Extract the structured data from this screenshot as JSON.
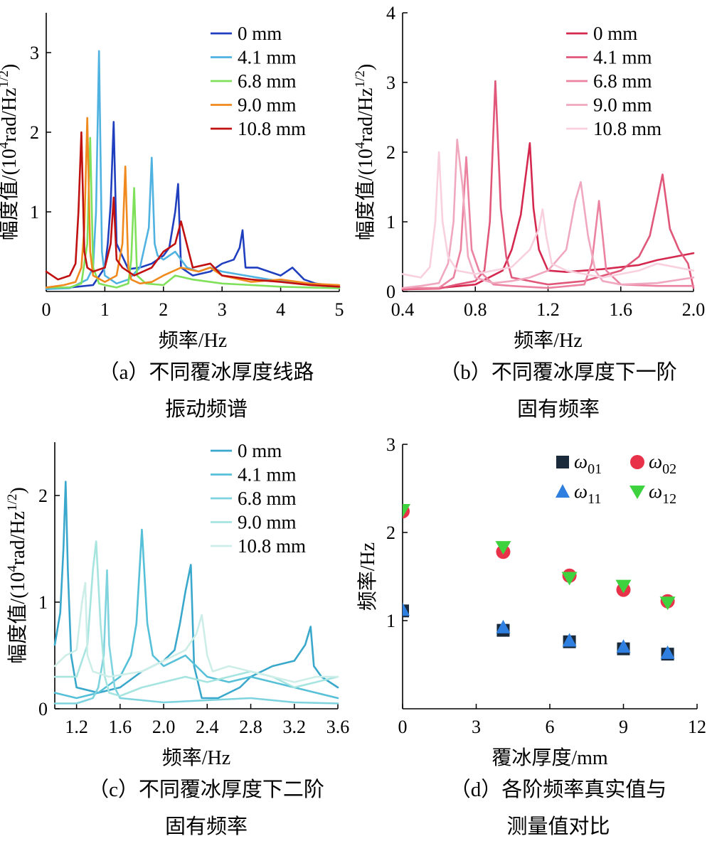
{
  "chart_data": [
    {
      "id": "a",
      "type": "line",
      "caption_lines": [
        "（a）不同覆冰厚度线路",
        "振动频谱"
      ],
      "xlabel": "频率/Hz",
      "ylabel_main": "幅度值/(10",
      "ylabel_sup1": "4",
      "ylabel_mid": "rad/Hz",
      "ylabel_sup2": "1/2",
      "ylabel_end": ")",
      "xlim": [
        0,
        5
      ],
      "ylim": [
        0,
        3.5
      ],
      "xticks": [
        0,
        1,
        2,
        3,
        4,
        5
      ],
      "yticks": [
        1,
        2,
        3
      ],
      "legend": "top-right",
      "series": [
        {
          "name": "0 mm",
          "color": "#1f3fbf",
          "x": [
            0,
            0.4,
            0.8,
            1.0,
            1.05,
            1.1,
            1.15,
            1.2,
            1.4,
            1.6,
            1.8,
            2.0,
            2.1,
            2.2,
            2.25,
            2.3,
            2.5,
            2.8,
            3.0,
            3.2,
            3.3,
            3.35,
            3.4,
            3.6,
            3.8,
            4.0,
            4.2,
            4.4,
            4.6,
            4.8,
            5.0
          ],
          "y": [
            0.03,
            0.05,
            0.08,
            0.3,
            0.6,
            1.1,
            2.13,
            0.6,
            0.28,
            0.3,
            0.35,
            0.45,
            0.55,
            1.0,
            1.35,
            0.3,
            0.2,
            0.25,
            0.35,
            0.4,
            0.55,
            0.77,
            0.3,
            0.3,
            0.25,
            0.2,
            0.3,
            0.15,
            0.1,
            0.08,
            0.05
          ]
        },
        {
          "name": "4.1 mm",
          "color": "#4fb2e0",
          "x": [
            0,
            0.4,
            0.7,
            0.8,
            0.85,
            0.9,
            0.95,
            1.0,
            1.2,
            1.4,
            1.6,
            1.75,
            1.8,
            1.85,
            1.9,
            2.0,
            2.2,
            2.4,
            2.6,
            2.8,
            3.0,
            3.4,
            3.8,
            4.2,
            4.6,
            5.0
          ],
          "y": [
            0.03,
            0.04,
            0.15,
            0.3,
            1.0,
            3.02,
            0.5,
            0.2,
            0.1,
            0.15,
            0.3,
            0.8,
            1.68,
            0.6,
            0.45,
            0.4,
            0.5,
            0.3,
            0.25,
            0.3,
            0.25,
            0.2,
            0.15,
            0.12,
            0.08,
            0.05
          ]
        },
        {
          "name": "6.8 mm",
          "color": "#7fe05a",
          "x": [
            0,
            0.4,
            0.6,
            0.7,
            0.75,
            0.8,
            0.9,
            1.0,
            1.2,
            1.4,
            1.45,
            1.5,
            1.55,
            1.7,
            2.0,
            2.2,
            2.5,
            3.0,
            3.5,
            4.0,
            4.5,
            5.0
          ],
          "y": [
            0.05,
            0.05,
            0.1,
            0.6,
            1.93,
            0.3,
            0.1,
            0.08,
            0.05,
            0.1,
            0.4,
            1.3,
            0.2,
            0.1,
            0.08,
            0.2,
            0.15,
            0.1,
            0.08,
            0.06,
            0.05,
            0.04
          ]
        },
        {
          "name": "9.0 mm",
          "color": "#f08a1e",
          "x": [
            0,
            0.3,
            0.5,
            0.6,
            0.65,
            0.7,
            0.75,
            0.8,
            1.0,
            1.2,
            1.3,
            1.35,
            1.4,
            1.45,
            1.6,
            1.8,
            2.0,
            2.3,
            2.6,
            2.8,
            3.0,
            3.5,
            4.0,
            4.5,
            5.0
          ],
          "y": [
            0.05,
            0.08,
            0.12,
            0.3,
            0.8,
            2.18,
            0.5,
            0.2,
            0.12,
            0.2,
            0.6,
            1.57,
            0.3,
            0.15,
            0.1,
            0.12,
            0.2,
            0.3,
            0.25,
            0.3,
            0.2,
            0.12,
            0.15,
            0.1,
            0.08
          ]
        },
        {
          "name": "10.8 mm",
          "color": "#c01010",
          "x": [
            0,
            0.2,
            0.4,
            0.5,
            0.55,
            0.6,
            0.65,
            0.7,
            0.8,
            1.0,
            1.1,
            1.15,
            1.2,
            1.3,
            1.5,
            1.8,
            2.0,
            2.2,
            2.3,
            2.5,
            2.8,
            3.0,
            3.5,
            4.0,
            4.5,
            5.0
          ],
          "y": [
            0.25,
            0.15,
            0.2,
            0.35,
            1.0,
            2.0,
            0.5,
            0.3,
            0.25,
            0.3,
            0.6,
            1.18,
            0.4,
            0.3,
            0.2,
            0.3,
            0.5,
            0.6,
            0.88,
            0.3,
            0.35,
            0.2,
            0.15,
            0.12,
            0.08,
            0.06
          ]
        }
      ]
    },
    {
      "id": "b",
      "type": "line",
      "caption_lines": [
        "（b）不同覆冰厚度下一阶",
        "固有频率"
      ],
      "xlabel": "频率/Hz",
      "ylabel_main": "幅度值/(10",
      "ylabel_sup1": "4",
      "ylabel_mid": "rad/Hz",
      "ylabel_sup2": "1/2",
      "ylabel_end": ")",
      "xlim": [
        0.4,
        2.0
      ],
      "ylim": [
        0,
        4
      ],
      "xticks": [
        0.4,
        0.8,
        1.2,
        1.6,
        2.0
      ],
      "yticks": [
        0,
        1,
        2,
        3,
        4
      ],
      "legend": "top-right",
      "series": [
        {
          "name": "0 mm",
          "color": "#d4284e",
          "x": [
            0.4,
            0.6,
            0.8,
            0.95,
            1.0,
            1.05,
            1.1,
            1.12,
            1.15,
            1.2,
            1.3,
            1.4,
            1.5,
            1.6,
            1.7,
            1.8,
            1.9,
            2.0
          ],
          "y": [
            0.03,
            0.05,
            0.1,
            0.3,
            0.6,
            1.1,
            2.13,
            1.2,
            0.6,
            0.3,
            0.28,
            0.3,
            0.32,
            0.35,
            0.38,
            0.45,
            0.5,
            0.55
          ]
        },
        {
          "name": "4.1 mm",
          "color": "#e0577a",
          "x": [
            0.4,
            0.6,
            0.7,
            0.8,
            0.85,
            0.88,
            0.91,
            0.94,
            0.97,
            1.0,
            1.2,
            1.4,
            1.6,
            1.7,
            1.76,
            1.8,
            1.83,
            1.87,
            1.92,
            1.97,
            2.0
          ],
          "y": [
            0.03,
            0.04,
            0.1,
            0.15,
            0.3,
            1.0,
            3.02,
            1.2,
            0.5,
            0.2,
            0.1,
            0.15,
            0.3,
            0.5,
            0.8,
            1.3,
            1.68,
            0.9,
            0.6,
            0.4,
            0.05
          ]
        },
        {
          "name": "6.8 mm",
          "color": "#ea82a0",
          "x": [
            0.4,
            0.6,
            0.68,
            0.72,
            0.75,
            0.78,
            0.82,
            0.9,
            1.0,
            1.2,
            1.4,
            1.44,
            1.48,
            1.52,
            1.6,
            1.8,
            2.0
          ],
          "y": [
            0.05,
            0.05,
            0.2,
            0.6,
            1.93,
            0.6,
            0.3,
            0.1,
            0.08,
            0.05,
            0.1,
            0.4,
            1.3,
            0.3,
            0.1,
            0.08,
            0.08
          ]
        },
        {
          "name": "9.0 mm",
          "color": "#f0a8bf",
          "x": [
            0.4,
            0.5,
            0.6,
            0.65,
            0.68,
            0.7,
            0.73,
            0.76,
            0.8,
            0.9,
            1.0,
            1.1,
            1.2,
            1.3,
            1.35,
            1.38,
            1.42,
            1.46,
            1.5,
            1.6,
            1.8,
            2.0
          ],
          "y": [
            0.05,
            0.08,
            0.12,
            0.4,
            1.0,
            2.18,
            1.5,
            0.5,
            0.2,
            0.12,
            0.15,
            0.2,
            0.3,
            0.6,
            1.3,
            1.57,
            0.8,
            0.3,
            0.15,
            0.1,
            0.12,
            0.2
          ]
        },
        {
          "name": "10.8 mm",
          "color": "#f8d0de",
          "x": [
            0.4,
            0.5,
            0.55,
            0.58,
            0.6,
            0.62,
            0.65,
            0.7,
            0.8,
            0.9,
            1.0,
            1.1,
            1.15,
            1.17,
            1.19,
            1.22,
            1.3,
            1.5,
            1.7,
            1.8,
            1.9,
            2.0
          ],
          "y": [
            0.25,
            0.2,
            0.35,
            1.0,
            2.0,
            1.0,
            0.5,
            0.3,
            0.25,
            0.3,
            0.35,
            0.6,
            0.9,
            1.18,
            0.8,
            0.4,
            0.3,
            0.2,
            0.3,
            0.4,
            0.35,
            0.3
          ]
        }
      ]
    },
    {
      "id": "c",
      "type": "line",
      "caption_lines": [
        "（c）不同覆冰厚度下二阶",
        "固有频率"
      ],
      "xlabel": "频率/Hz",
      "ylabel_main": "幅度值/(10",
      "ylabel_sup1": "4",
      "ylabel_mid": "rad/Hz",
      "ylabel_sup2": "1/2",
      "ylabel_end": ")",
      "xlim": [
        1.0,
        3.6
      ],
      "ylim": [
        0,
        2.5
      ],
      "xticks": [
        1.2,
        1.6,
        2.0,
        2.4,
        2.8,
        3.2,
        3.6
      ],
      "yticks": [
        0,
        1,
        2
      ],
      "legend": "top-right",
      "series": [
        {
          "name": "0 mm",
          "color": "#3aa8cc",
          "x": [
            1.0,
            1.05,
            1.08,
            1.1,
            1.12,
            1.15,
            1.2,
            1.4,
            1.6,
            1.8,
            2.0,
            2.1,
            2.15,
            2.2,
            2.25,
            2.28,
            2.35,
            2.5,
            2.7,
            2.8,
            3.0,
            3.2,
            3.3,
            3.35,
            3.38,
            3.45,
            3.6
          ],
          "y": [
            0.6,
            0.9,
            1.5,
            2.13,
            1.3,
            0.5,
            0.2,
            0.15,
            0.2,
            0.35,
            0.45,
            0.55,
            0.8,
            1.1,
            1.35,
            0.4,
            0.1,
            0.1,
            0.2,
            0.3,
            0.4,
            0.45,
            0.6,
            0.77,
            0.4,
            0.3,
            0.2
          ]
        },
        {
          "name": "4.1 mm",
          "color": "#55c0d8",
          "x": [
            1.0,
            1.2,
            1.4,
            1.6,
            1.7,
            1.75,
            1.8,
            1.85,
            1.9,
            2.0,
            2.2,
            2.4,
            2.6,
            2.8,
            3.0,
            3.2,
            3.4,
            3.6
          ],
          "y": [
            0.15,
            0.1,
            0.15,
            0.3,
            0.5,
            0.8,
            1.68,
            0.8,
            0.5,
            0.4,
            0.5,
            0.3,
            0.25,
            0.3,
            0.25,
            0.2,
            0.15,
            0.1
          ]
        },
        {
          "name": "6.8 mm",
          "color": "#7ed3df",
          "x": [
            1.0,
            1.2,
            1.35,
            1.4,
            1.45,
            1.48,
            1.5,
            1.55,
            1.6,
            1.8,
            2.0,
            2.4,
            2.8,
            3.2,
            3.6
          ],
          "y": [
            0.05,
            0.05,
            0.1,
            0.2,
            0.5,
            1.3,
            0.6,
            0.2,
            0.1,
            0.08,
            0.06,
            0.08,
            0.1,
            0.06,
            0.05
          ]
        },
        {
          "name": "9.0 mm",
          "color": "#a6e4e0",
          "x": [
            1.0,
            1.2,
            1.3,
            1.35,
            1.38,
            1.42,
            1.46,
            1.5,
            1.6,
            1.8,
            2.0,
            2.2,
            2.4,
            2.6,
            2.8,
            3.0,
            3.2,
            3.4,
            3.6
          ],
          "y": [
            0.3,
            0.3,
            0.6,
            1.3,
            1.57,
            0.8,
            0.3,
            0.15,
            0.12,
            0.2,
            0.25,
            0.3,
            0.25,
            0.3,
            0.35,
            0.3,
            0.2,
            0.25,
            0.3
          ]
        },
        {
          "name": "10.8 mm",
          "color": "#cdeee8",
          "x": [
            1.0,
            1.1,
            1.2,
            1.25,
            1.28,
            1.3,
            1.35,
            1.5,
            1.8,
            2.0,
            2.2,
            2.3,
            2.35,
            2.4,
            2.45,
            2.6,
            2.8,
            3.0,
            3.2,
            3.4,
            3.6
          ],
          "y": [
            0.4,
            0.5,
            0.55,
            1.0,
            1.18,
            0.5,
            0.35,
            0.3,
            0.35,
            0.45,
            0.55,
            0.7,
            0.88,
            0.5,
            0.35,
            0.4,
            0.35,
            0.3,
            0.25,
            0.3,
            0.3
          ]
        }
      ]
    },
    {
      "id": "d",
      "type": "scatter",
      "caption_lines": [
        "（d）各阶频率真实值与",
        "测量值对比"
      ],
      "xlabel": "覆冰厚度/mm",
      "ylabel": "频率/Hz",
      "xlim": [
        0,
        12
      ],
      "ylim": [
        0,
        3
      ],
      "xticks": [
        0,
        3,
        6,
        9,
        12
      ],
      "yticks": [
        1,
        2,
        3
      ],
      "legend": "top-right",
      "series": [
        {
          "name": "ω01",
          "name_base": "ω",
          "name_sub": "01",
          "marker": "square",
          "color": "#1a2a3a",
          "x": [
            0,
            4.1,
            6.8,
            9.0,
            10.8
          ],
          "y": [
            1.11,
            0.89,
            0.76,
            0.68,
            0.62
          ]
        },
        {
          "name": "ω02",
          "name_base": "ω",
          "name_sub": "02",
          "marker": "circle",
          "color": "#e8324a",
          "x": [
            0,
            4.1,
            6.8,
            9.0,
            10.8
          ],
          "y": [
            2.24,
            1.78,
            1.51,
            1.35,
            1.22
          ]
        },
        {
          "name": "ω11",
          "name_base": "ω",
          "name_sub": "11",
          "marker": "triangle-up",
          "color": "#2f7fe0",
          "x": [
            0,
            4.1,
            6.8,
            9.0,
            10.8
          ],
          "y": [
            1.12,
            0.92,
            0.77,
            0.7,
            0.63
          ]
        },
        {
          "name": "ω12",
          "name_base": "ω",
          "name_sub": "12",
          "marker": "triangle-down",
          "color": "#3fd23f",
          "x": [
            0,
            4.1,
            6.8,
            9.0,
            10.8
          ],
          "y": [
            2.25,
            1.83,
            1.48,
            1.39,
            1.2
          ]
        }
      ]
    }
  ]
}
